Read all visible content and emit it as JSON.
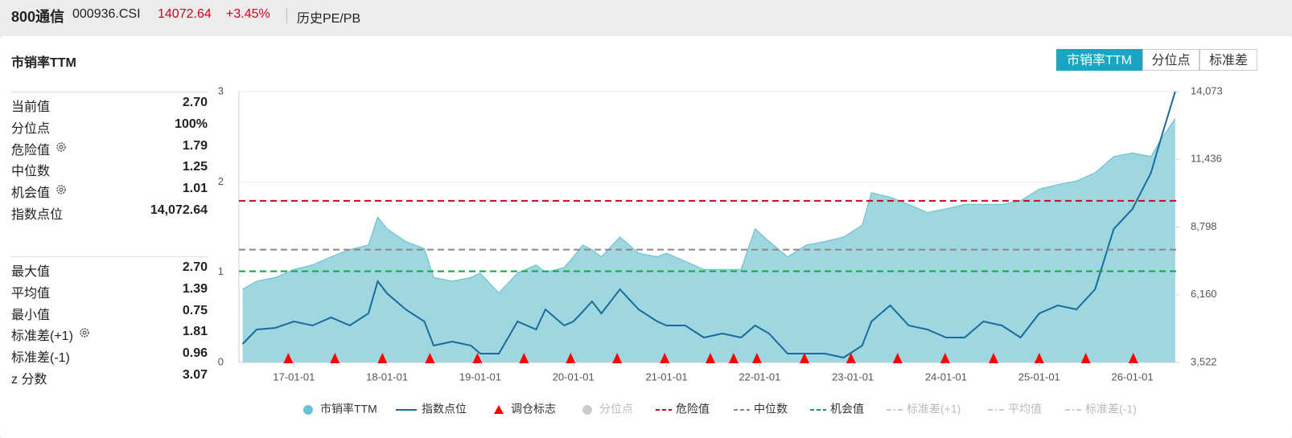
{
  "header": {
    "name": "800通信",
    "code": "000936.CSI",
    "price": "14072.64",
    "change": "+3.45%",
    "tab": "历史PE/PB"
  },
  "panel": {
    "title": "市销率TTM",
    "buttons": [
      "市销率TTM",
      "分位点",
      "标准差"
    ],
    "active_button": 0
  },
  "stats": {
    "group1": [
      {
        "label": "当前值",
        "value": "2.70",
        "gear": false
      },
      {
        "label": "分位点",
        "value": "100%",
        "gear": false
      },
      {
        "label": "危险值",
        "value": "1.79",
        "gear": true
      },
      {
        "label": "中位数",
        "value": "1.25",
        "gear": false
      },
      {
        "label": "机会值",
        "value": "1.01",
        "gear": true
      },
      {
        "label": "指数点位",
        "value": "14,072.64",
        "gear": false
      }
    ],
    "group2": [
      {
        "label": "最大值",
        "value": "2.70",
        "gear": false
      },
      {
        "label": "平均值",
        "value": "1.39",
        "gear": false
      },
      {
        "label": "最小值",
        "value": "0.75",
        "gear": false
      },
      {
        "label": "标准差(+1)",
        "value": "1.81",
        "gear": true
      },
      {
        "label": "标准差(-1)",
        "value": "0.96",
        "gear": false
      },
      {
        "label": "z 分数",
        "value": "3.07",
        "gear": false
      }
    ]
  },
  "chart_data": {
    "type": "combo",
    "x": [
      2016.45,
      2016.6,
      2016.8,
      2017.0,
      2017.2,
      2017.4,
      2017.6,
      2017.8,
      2017.9,
      2018.0,
      2018.2,
      2018.4,
      2018.5,
      2018.7,
      2018.9,
      2019.0,
      2019.2,
      2019.4,
      2019.6,
      2019.7,
      2019.9,
      2020.0,
      2020.1,
      2020.2,
      2020.3,
      2020.5,
      2020.7,
      2020.9,
      2021.0,
      2021.2,
      2021.4,
      2021.6,
      2021.8,
      2021.95,
      2022.1,
      2022.3,
      2022.5,
      2022.7,
      2022.9,
      2023.1,
      2023.2,
      2023.4,
      2023.6,
      2023.8,
      2024.0,
      2024.2,
      2024.4,
      2024.6,
      2024.8,
      2025.0,
      2025.2,
      2025.4,
      2025.6,
      2025.8,
      2026.0,
      2026.2,
      2026.3,
      2026.46
    ],
    "series": [
      {
        "name": "市销率TTM",
        "kind": "area",
        "axis": "y",
        "color": "#9ed7e0",
        "edge_color": "#6cc3d1",
        "values": [
          0.81,
          0.9,
          0.94,
          1.03,
          1.08,
          1.17,
          1.25,
          1.3,
          1.61,
          1.48,
          1.34,
          1.26,
          0.94,
          0.9,
          0.94,
          0.99,
          0.77,
          0.99,
          1.08,
          1.0,
          1.05,
          1.17,
          1.3,
          1.25,
          1.17,
          1.39,
          1.21,
          1.17,
          1.21,
          1.12,
          1.03,
          1.03,
          1.03,
          1.48,
          1.34,
          1.17,
          1.3,
          1.34,
          1.39,
          1.52,
          1.88,
          1.83,
          1.75,
          1.66,
          1.7,
          1.75,
          1.75,
          1.75,
          1.79,
          1.92,
          1.97,
          2.01,
          2.1,
          2.28,
          2.32,
          2.28,
          2.46,
          2.7
        ]
      },
      {
        "name": "指数点位",
        "kind": "line",
        "axis": "y2",
        "color": "#1a6b9b",
        "values": [
          4242,
          4806,
          4868,
          5119,
          4962,
          5275,
          4962,
          5432,
          6684,
          6215,
          5588,
          5119,
          4180,
          4336,
          4180,
          3866,
          3866,
          5119,
          4806,
          5588,
          4962,
          5119,
          5500,
          5901,
          5432,
          6371,
          5588,
          5119,
          4962,
          4962,
          4493,
          4649,
          4493,
          4962,
          4649,
          3866,
          3866,
          3866,
          3710,
          4180,
          5119,
          5745,
          4962,
          4806,
          4493,
          4493,
          5119,
          4962,
          4493,
          5432,
          5745,
          5588,
          6371,
          8719,
          9502,
          10911,
          12163,
          14072.64
        ]
      }
    ],
    "markers": {
      "name": "调仓标志",
      "color": "#ff0000",
      "x": [
        2016.94,
        2017.44,
        2017.95,
        2018.46,
        2018.97,
        2019.47,
        2019.97,
        2020.47,
        2020.98,
        2021.47,
        2021.72,
        2021.97,
        2022.48,
        2022.98,
        2023.48,
        2023.99,
        2024.51,
        2025.0,
        2025.5,
        2026.01
      ]
    },
    "reference_lines": [
      {
        "name": "危险值",
        "value": 1.79,
        "color": "#d0021b"
      },
      {
        "name": "中位数",
        "value": 1.25,
        "color": "#888888"
      },
      {
        "name": "机会值",
        "value": 1.01,
        "color": "#1e9e50"
      }
    ],
    "inactive_legend": [
      {
        "name": "分位点",
        "shape": "circle"
      },
      {
        "name": "标准差(+1)",
        "shape": "dash"
      },
      {
        "name": "平均值",
        "shape": "dash"
      },
      {
        "name": "标准差(-1)",
        "shape": "dash"
      }
    ],
    "xlim": [
      2016.41,
      2026.47
    ],
    "xticks": [
      {
        "value": 2017,
        "label": "17-01-01"
      },
      {
        "value": 2018,
        "label": "18-01-01"
      },
      {
        "value": 2019,
        "label": "19-01-01"
      },
      {
        "value": 2020,
        "label": "20-01-01"
      },
      {
        "value": 2021,
        "label": "21-01-01"
      },
      {
        "value": 2022,
        "label": "22-01-01"
      },
      {
        "value": 2023,
        "label": "23-01-01"
      },
      {
        "value": 2024,
        "label": "24-01-01"
      },
      {
        "value": 2025,
        "label": "25-01-01"
      },
      {
        "value": 2026,
        "label": "26-01-01"
      }
    ],
    "ylim": [
      0,
      3
    ],
    "yticks": [
      0,
      1,
      2,
      3
    ],
    "y2lim": [
      3522,
      14073
    ],
    "y2ticks": [
      {
        "value": 3522,
        "label": "3,522"
      },
      {
        "value": 6160,
        "label": "6,160"
      },
      {
        "value": 8798,
        "label": "8,798"
      },
      {
        "value": 11436,
        "label": "11,436"
      },
      {
        "value": 14073,
        "label": "14,073"
      }
    ],
    "grid": true
  }
}
